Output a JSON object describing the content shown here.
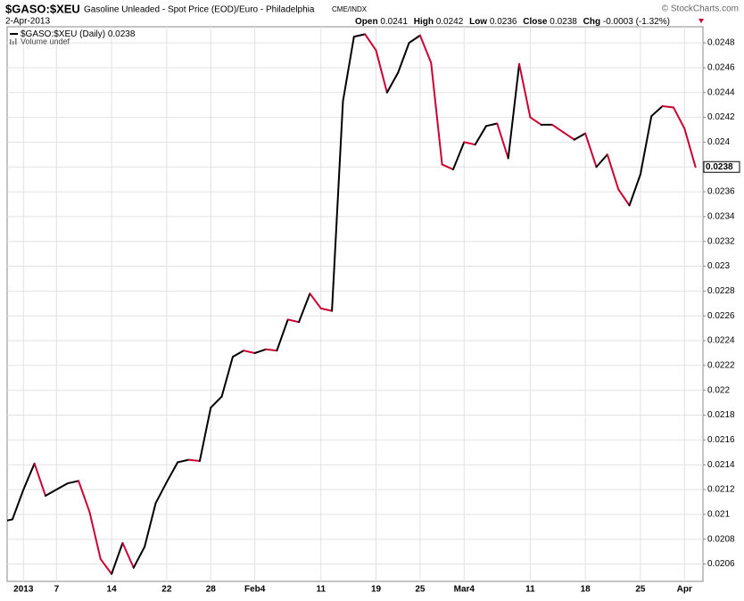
{
  "chart_data": {
    "type": "line",
    "title": "$GASO:$XEU",
    "subtitle": "Gasoline Unleaded - Spot Price (EOD)/Euro - Philadelphia",
    "exchange": "CME/INDX",
    "date": "2-Apr-2013",
    "credit": "© StockCharts.com",
    "quote": {
      "open_label": "Open",
      "open": 0.0241,
      "high_label": "High",
      "high": 0.0242,
      "low_label": "Low",
      "low": 0.0236,
      "close_label": "Close",
      "close": 0.0238,
      "chg_label": "Chg",
      "chg": "-0.0003 (-1.32%)"
    },
    "legend_volume": "Volume undef",
    "categories": [
      null,
      null,
      "2013",
      null,
      null,
      "7",
      null,
      null,
      null,
      null,
      "14",
      null,
      null,
      null,
      null,
      "22",
      null,
      null,
      null,
      "28",
      null,
      null,
      null,
      "Feb4",
      null,
      null,
      null,
      null,
      null,
      "11",
      null,
      null,
      null,
      null,
      "19",
      null,
      null,
      null,
      "25",
      null,
      null,
      null,
      "Mar4",
      null,
      null,
      null,
      null,
      null,
      "11",
      null,
      null,
      null,
      null,
      "18",
      null,
      null,
      null,
      null,
      "25",
      null,
      null,
      null,
      "Apr",
      null
    ],
    "series": [
      {
        "name": "$GASO:$XEU (Daily)",
        "color": "#000000",
        "down_color": "#cc0033",
        "values": [
          0.02094,
          0.02096,
          0.0212,
          0.02141,
          0.02115,
          0.0212,
          0.02125,
          0.02127,
          0.02102,
          0.02064,
          0.02052,
          0.02077,
          0.02057,
          0.02074,
          0.02109,
          0.02126,
          0.02142,
          0.02144,
          0.02143,
          0.02186,
          0.02195,
          0.02227,
          0.02232,
          0.0223,
          0.02233,
          0.02232,
          0.02257,
          0.02255,
          0.02278,
          0.02266,
          0.02264,
          0.02433,
          0.02485,
          0.02487,
          0.02474,
          0.0244,
          0.02456,
          0.0248,
          0.02486,
          0.02464,
          0.02382,
          0.02378,
          0.024,
          0.02398,
          0.02413,
          0.02415,
          0.02387,
          0.02463,
          0.0242,
          0.02414,
          0.02414,
          0.02408,
          0.02402,
          0.02407,
          0.0238,
          0.0239,
          0.02362,
          0.02349,
          0.02374,
          0.02421,
          0.02429,
          0.02428,
          0.02411,
          0.0238
        ]
      }
    ],
    "ylim": [
      0.02046,
      0.02493
    ],
    "yticks": [
      0.0206,
      0.0208,
      0.021,
      0.0212,
      0.0214,
      0.0216,
      0.0218,
      0.022,
      0.0222,
      0.0224,
      0.0226,
      0.0228,
      0.023,
      0.0232,
      0.0234,
      0.0236,
      0.0238,
      0.024,
      0.0242,
      0.0244,
      0.0246,
      0.0248
    ],
    "grid": true
  }
}
